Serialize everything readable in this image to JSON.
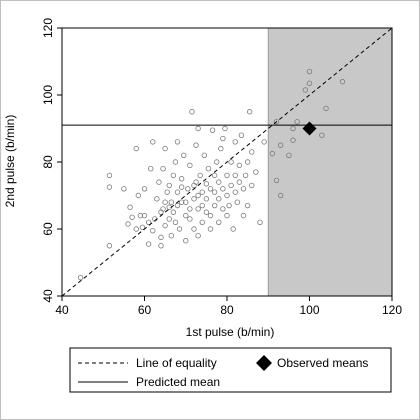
{
  "chart_data": {
    "type": "scatter",
    "xlabel": "1st pulse (b/min)",
    "ylabel": "2nd pulse (b/min)",
    "xlim": [
      40,
      120
    ],
    "ylim": [
      40,
      120
    ],
    "xticks": [
      "40",
      "60",
      "80",
      "100",
      "120"
    ],
    "yticks": [
      "40",
      "60",
      "80",
      "100",
      "120"
    ],
    "grid": false,
    "shaded_region": {
      "x_from": 90,
      "x_to": 120
    },
    "equality_line": {
      "from": [
        40,
        40
      ],
      "to": [
        120,
        120
      ]
    },
    "predicted_mean": 91,
    "observed_means": {
      "x": 100,
      "y": 90
    },
    "points": [
      [
        44.5,
        45.5
      ],
      [
        51.5,
        55
      ],
      [
        51.5,
        72.5
      ],
      [
        51.5,
        76
      ],
      [
        55,
        72
      ],
      [
        56,
        61.5
      ],
      [
        56.5,
        66.5
      ],
      [
        57,
        63.5
      ],
      [
        58,
        60
      ],
      [
        58,
        84
      ],
      [
        58.5,
        70
      ],
      [
        59,
        64
      ],
      [
        59.5,
        60.5
      ],
      [
        60,
        64
      ],
      [
        60,
        72
      ],
      [
        61,
        55.5
      ],
      [
        61,
        62
      ],
      [
        61.5,
        78
      ],
      [
        62,
        86
      ],
      [
        62,
        59.5
      ],
      [
        62.5,
        63
      ],
      [
        63,
        69
      ],
      [
        63.5,
        74
      ],
      [
        64,
        55
      ],
      [
        64,
        57.5
      ],
      [
        64,
        65
      ],
      [
        64.5,
        66
      ],
      [
        64.5,
        78
      ],
      [
        65,
        61
      ],
      [
        65,
        68
      ],
      [
        65,
        84
      ],
      [
        65.5,
        71
      ],
      [
        66,
        63
      ],
      [
        66,
        66.5
      ],
      [
        66,
        73
      ],
      [
        66.5,
        58
      ],
      [
        66.5,
        68
      ],
      [
        67,
        65
      ],
      [
        67,
        76
      ],
      [
        67.5,
        80
      ],
      [
        67.5,
        62
      ],
      [
        68,
        67
      ],
      [
        68,
        71
      ],
      [
        68,
        86
      ],
      [
        68.5,
        60
      ],
      [
        69,
        68
      ],
      [
        69,
        72.5
      ],
      [
        69,
        75
      ],
      [
        69.5,
        82
      ],
      [
        70,
        56.5
      ],
      [
        70,
        64
      ],
      [
        70,
        68
      ],
      [
        70.5,
        72
      ],
      [
        71,
        63
      ],
      [
        71,
        66
      ],
      [
        71,
        79
      ],
      [
        71.5,
        95
      ],
      [
        72,
        60
      ],
      [
        72,
        69
      ],
      [
        72,
        73
      ],
      [
        72.5,
        74
      ],
      [
        72.5,
        85
      ],
      [
        73,
        58
      ],
      [
        73,
        66
      ],
      [
        73,
        70
      ],
      [
        73,
        90
      ],
      [
        73.5,
        76
      ],
      [
        74,
        62
      ],
      [
        74,
        67
      ],
      [
        74,
        71
      ],
      [
        74.5,
        82
      ],
      [
        75,
        65
      ],
      [
        75,
        69
      ],
      [
        75,
        73.5
      ],
      [
        75.5,
        78
      ],
      [
        76,
        60
      ],
      [
        76,
        64
      ],
      [
        76,
        72
      ],
      [
        76.5,
        89.5
      ],
      [
        77,
        67
      ],
      [
        77,
        71
      ],
      [
        77,
        76
      ],
      [
        77.5,
        80
      ],
      [
        78,
        62
      ],
      [
        78,
        69
      ],
      [
        78,
        74
      ],
      [
        78.5,
        84
      ],
      [
        79,
        66
      ],
      [
        79,
        72
      ],
      [
        79,
        87
      ],
      [
        79.5,
        90
      ],
      [
        80,
        64
      ],
      [
        80,
        70
      ],
      [
        80,
        76
      ],
      [
        80.5,
        67
      ],
      [
        81,
        73
      ],
      [
        81,
        80
      ],
      [
        81.5,
        60
      ],
      [
        82,
        71
      ],
      [
        82,
        76
      ],
      [
        82,
        86
      ],
      [
        82.5,
        68
      ],
      [
        83,
        74
      ],
      [
        83,
        79
      ],
      [
        83.5,
        88
      ],
      [
        84,
        64
      ],
      [
        84,
        72
      ],
      [
        84.5,
        76
      ],
      [
        85,
        67
      ],
      [
        85,
        80
      ],
      [
        85.5,
        95
      ],
      [
        86,
        73
      ],
      [
        86,
        83
      ],
      [
        87,
        77
      ],
      [
        88,
        62
      ],
      [
        89,
        86
      ],
      [
        91,
        82.5
      ],
      [
        92,
        74.5
      ],
      [
        92,
        92
      ],
      [
        93,
        85
      ],
      [
        93,
        70
      ],
      [
        95,
        82
      ],
      [
        96,
        86.5
      ],
      [
        96,
        90
      ],
      [
        97,
        92
      ],
      [
        99,
        101.5
      ],
      [
        100,
        107
      ],
      [
        100,
        103.5
      ],
      [
        103,
        88
      ],
      [
        104,
        96
      ],
      [
        108,
        104
      ]
    ]
  },
  "legend": {
    "entries": [
      {
        "label": "Line of equality",
        "style": "dashed"
      },
      {
        "label": "Observed means",
        "style": "diamond"
      },
      {
        "label": "Predicted mean",
        "style": "solid"
      }
    ]
  },
  "colors": {
    "shade": "#c8c8c8",
    "marker_stroke": "#7a7a7a",
    "ink": "#000000"
  }
}
